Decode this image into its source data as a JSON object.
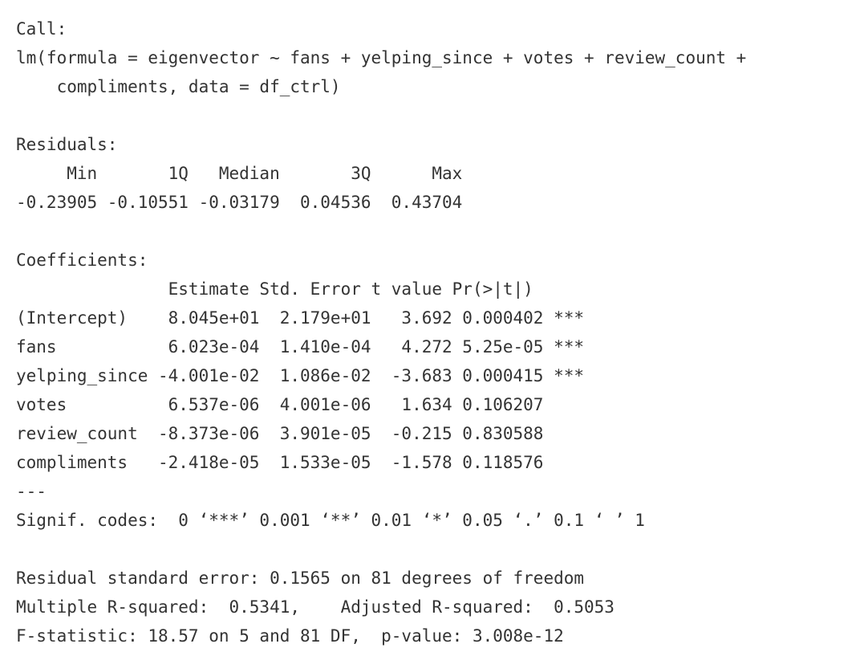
{
  "output": {
    "call_header": "Call:",
    "call_line_1": "lm(formula = eigenvector ~ fans + yelping_since + votes + review_count +",
    "call_line_2": "    compliments, data = df_ctrl)",
    "residuals_header": "Residuals:",
    "residuals_columns": "     Min       1Q   Median       3Q      Max ",
    "residuals_values": "-0.23905 -0.10551 -0.03179  0.04536  0.43704 ",
    "coefficients_header": "Coefficients:",
    "coefficients_columns": "               Estimate Std. Error t value Pr(>|t|)    ",
    "coefficient_rows": [
      "(Intercept)    8.045e+01  2.179e+01   3.692 0.000402 ***",
      "fans           6.023e-04  1.410e-04   4.272 5.25e-05 ***",
      "yelping_since -4.001e-02  1.086e-02  -3.683 0.000415 ***",
      "votes          6.537e-06  4.001e-06   1.634 0.106207    ",
      "review_count  -8.373e-06  3.901e-05  -0.215 0.830588    ",
      "compliments   -2.418e-05  1.533e-05  -1.578 0.118576    "
    ],
    "separator": "---",
    "signif_codes": "Signif. codes:  0 ‘***’ 0.001 ‘**’ 0.01 ‘*’ 0.05 ‘.’ 0.1 ‘ ’ 1",
    "residual_std_error": "Residual standard error: 0.1565 on 81 degrees of freedom",
    "r_squared": "Multiple R-squared:  0.5341,\tAdjusted R-squared:  0.5053 ",
    "f_statistic": "F-statistic: 18.57 on 5 and 81 DF,  p-value: 3.008e-12"
  }
}
